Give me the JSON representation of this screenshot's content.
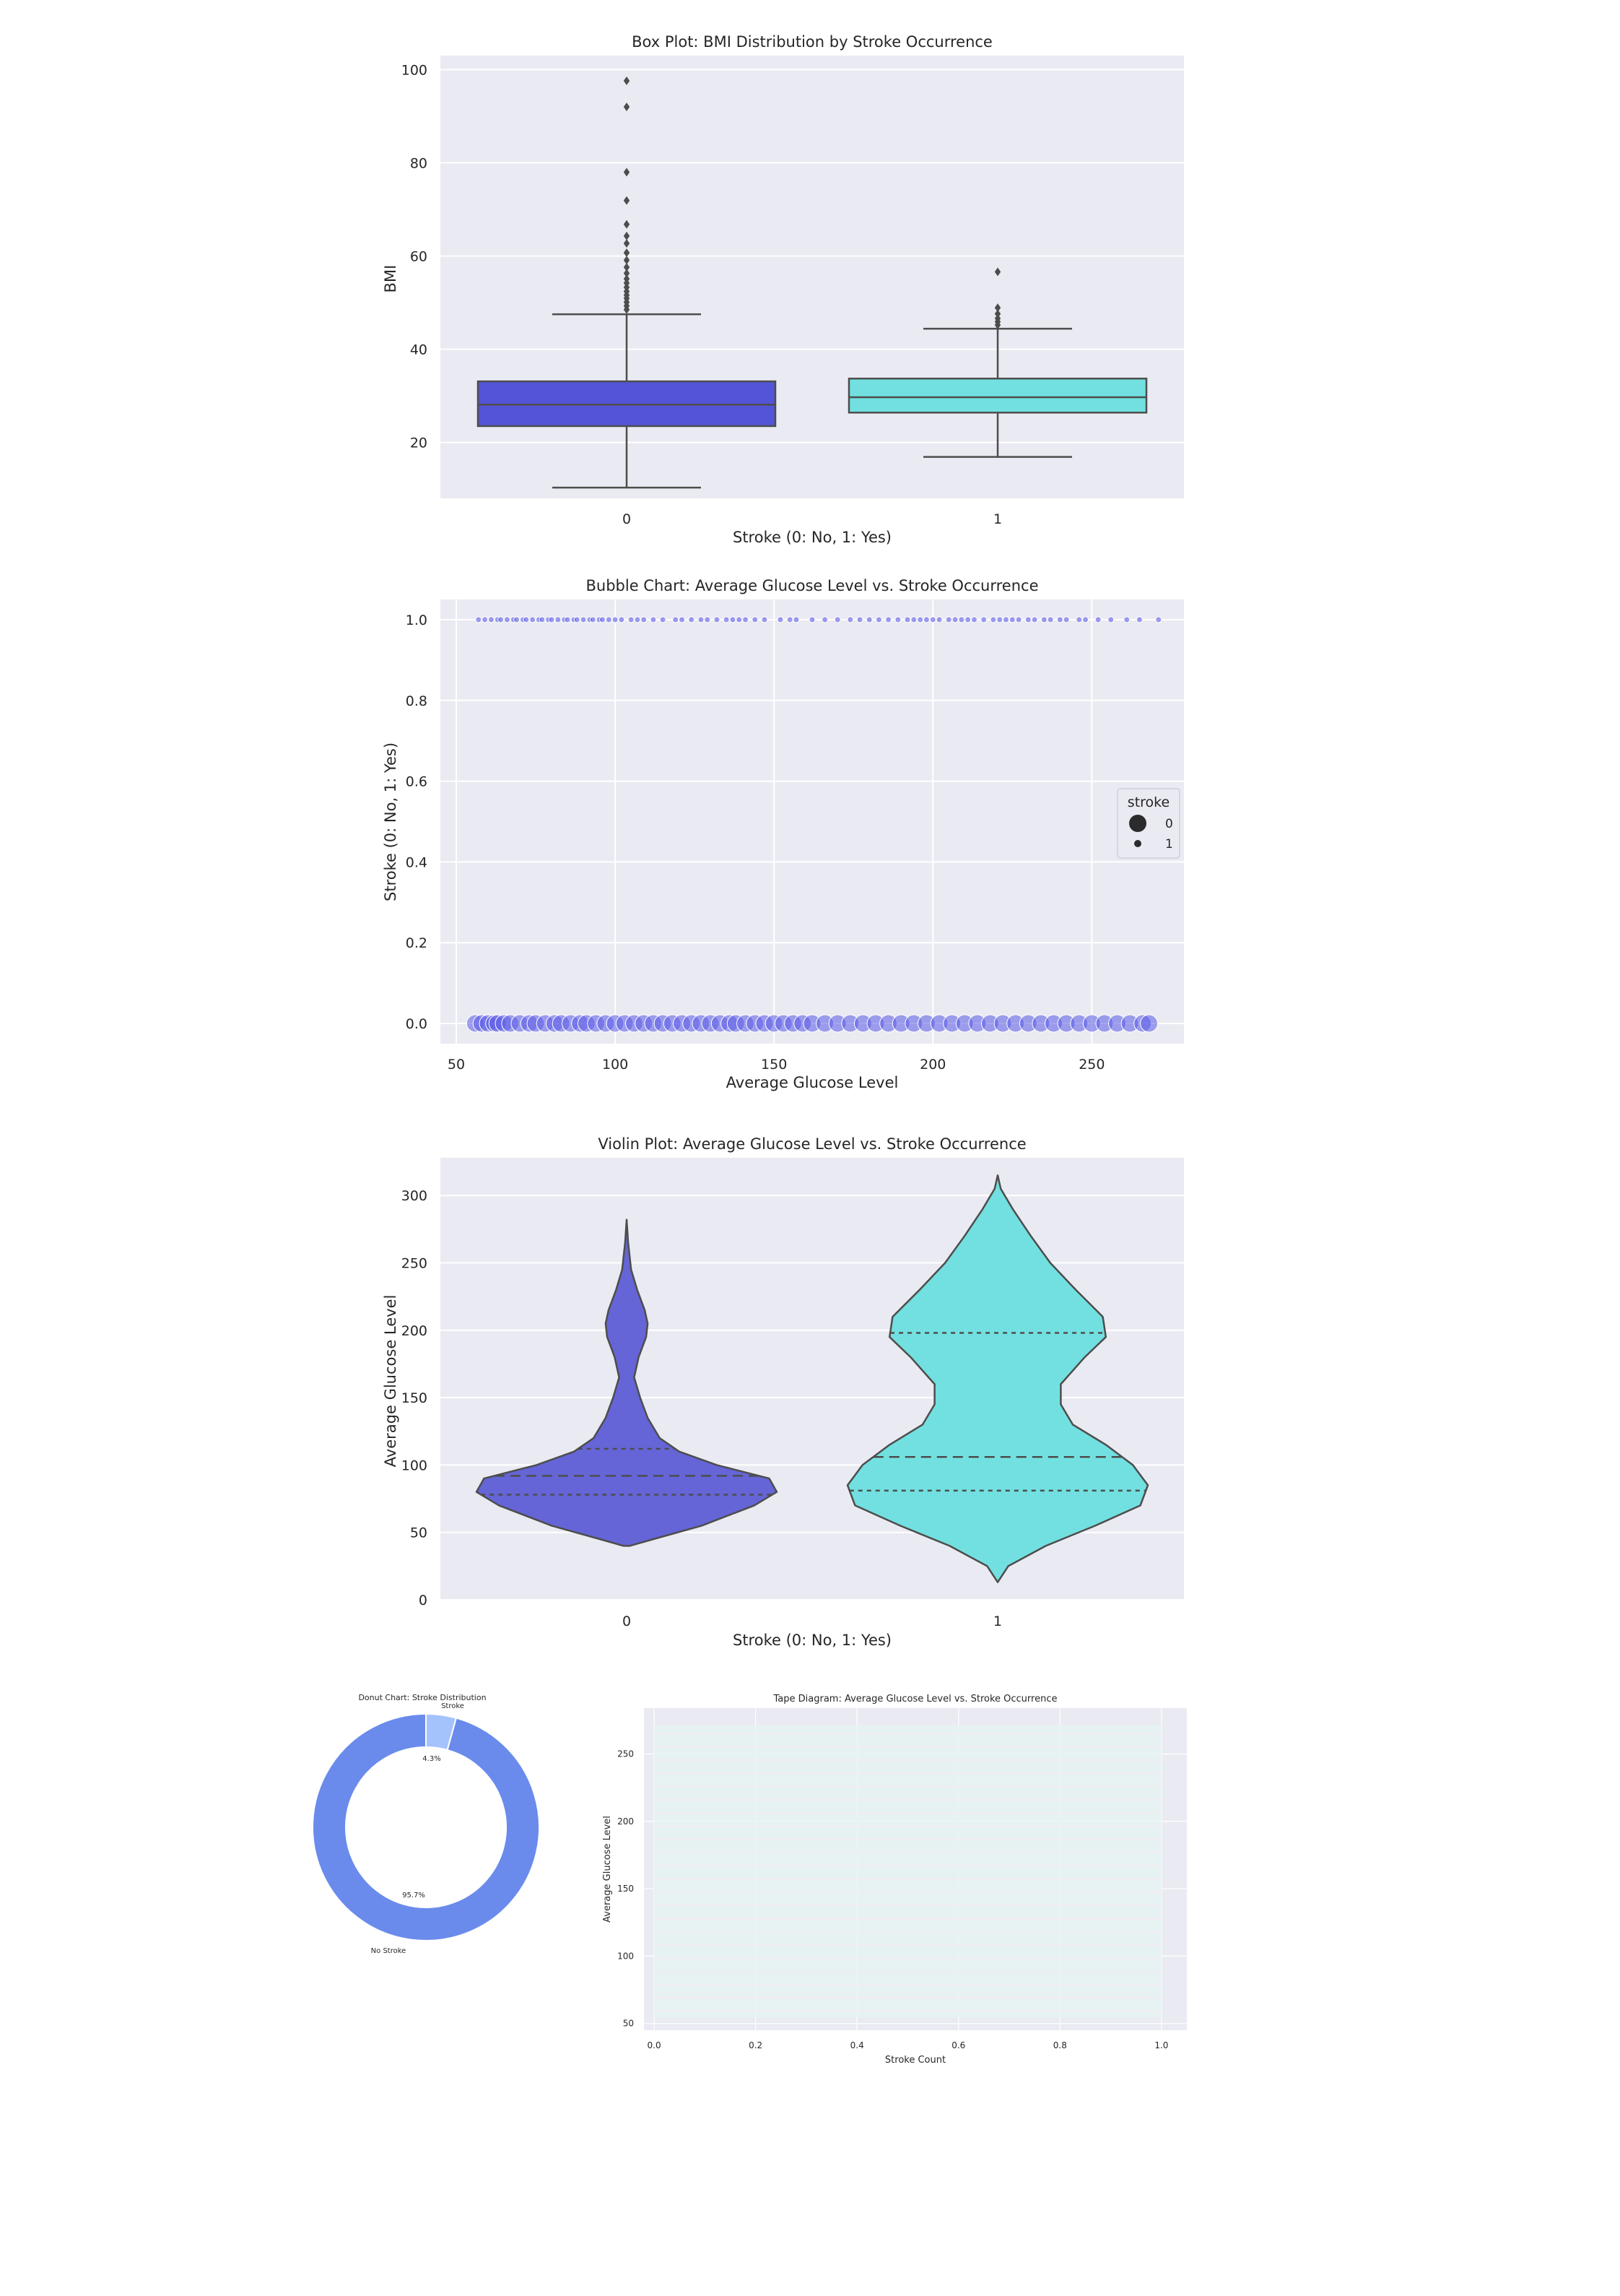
{
  "colors": {
    "panel_bg": "#eaeaf2",
    "grid": "#ffffff",
    "text": "#262626",
    "box0": "#5454d8",
    "box1": "#72e0e0",
    "violin0": "#6565d8",
    "violin1": "#72e0e0",
    "bubble": "#5a5ae6",
    "donut_major": "#6a8bec",
    "donut_minor": "#a4c2fb",
    "line": "#4d4d4d",
    "tape_light": "#e6f3f3",
    "tape_dark": "#f0edf3"
  },
  "chart_data": [
    {
      "type": "box",
      "title": "Box Plot: BMI Distribution by Stroke Occurrence",
      "xlabel": "Stroke (0: No, 1: Yes)",
      "ylabel": "BMI",
      "categories": [
        "0",
        "1"
      ],
      "ylim": [
        8,
        103
      ],
      "yticks": [
        20,
        40,
        60,
        80,
        100
      ],
      "boxes": [
        {
          "category": "0",
          "whisker_low": 10.3,
          "q1": 23.5,
          "median": 28.1,
          "q3": 33.1,
          "whisker_high": 47.5,
          "outliers": [
            48.5,
            49.3,
            50.1,
            50.9,
            51.6,
            52.4,
            53.3,
            54.2,
            55.1,
            56.3,
            57.6,
            59.1,
            60.7,
            62.7,
            64.3,
            66.8,
            71.9,
            78.0,
            92.0,
            97.6
          ]
        },
        {
          "category": "1",
          "whisker_low": 16.9,
          "q1": 26.4,
          "median": 29.7,
          "q3": 33.7,
          "whisker_high": 44.4,
          "outliers": [
            45.2,
            45.9,
            46.6,
            47.6,
            48.9,
            56.6
          ]
        }
      ]
    },
    {
      "type": "scatter",
      "title": "Bubble Chart: Average Glucose Level vs. Stroke Occurrence",
      "xlabel": "Average Glucose Level",
      "ylabel": "Stroke (0: No, 1: Yes)",
      "xlim": [
        45,
        279
      ],
      "ylim": [
        -0.05,
        1.05
      ],
      "xticks": [
        50,
        100,
        150,
        200,
        250
      ],
      "yticks": [
        0.0,
        0.2,
        0.4,
        0.6,
        0.8,
        1.0
      ],
      "legend": {
        "title": "stroke",
        "entries": [
          "0",
          "1"
        ],
        "position": "center-right"
      },
      "series": [
        {
          "name": "0",
          "y": 0,
          "size": "large",
          "x": [
            56,
            58,
            60,
            62,
            63,
            65,
            67,
            70,
            73,
            75,
            78,
            81,
            83,
            86,
            89,
            91,
            94,
            97,
            100,
            103,
            106,
            109,
            112,
            115,
            118,
            121,
            124,
            127,
            130,
            133,
            136,
            138,
            141,
            144,
            147,
            150,
            153,
            156,
            159,
            162,
            166,
            170,
            174,
            178,
            182,
            186,
            190,
            194,
            198,
            202,
            206,
            210,
            214,
            218,
            222,
            226,
            230,
            234,
            238,
            242,
            246,
            250,
            254,
            258,
            262,
            266,
            268
          ]
        },
        {
          "name": "1",
          "y": 1,
          "size": "small",
          "x": [
            57,
            59,
            61,
            63,
            64,
            66,
            68,
            69,
            71,
            72,
            74,
            76,
            77,
            79,
            80,
            82,
            84,
            85,
            87,
            88,
            90,
            92,
            93,
            95,
            96,
            98,
            100,
            102,
            105,
            107,
            109,
            112,
            115,
            119,
            121,
            124,
            127,
            129,
            132,
            135,
            137,
            139,
            141,
            144,
            147,
            152,
            155,
            157,
            162,
            166,
            170,
            174,
            177,
            180,
            183,
            186,
            189,
            192,
            194,
            196,
            198,
            200,
            202,
            205,
            207,
            209,
            211,
            213,
            216,
            219,
            221,
            223,
            225,
            227,
            230,
            232,
            235,
            237,
            240,
            242,
            246,
            248,
            252,
            256,
            261,
            265,
            271
          ]
        }
      ]
    },
    {
      "type": "violin",
      "title": "Violin Plot: Average Glucose Level vs. Stroke Occurrence",
      "xlabel": "Stroke (0: No, 1: Yes)",
      "ylabel": "Average Glucose Level",
      "categories": [
        "0",
        "1"
      ],
      "ylim": [
        0,
        328
      ],
      "yticks": [
        0,
        50,
        100,
        150,
        200,
        250,
        300
      ],
      "violins": [
        {
          "category": "0",
          "q1": 78,
          "median": 92,
          "q3": 112,
          "profile": [
            [
              40,
              0.02
            ],
            [
              45,
              0.18
            ],
            [
              55,
              0.5
            ],
            [
              70,
              0.85
            ],
            [
              80,
              1.0
            ],
            [
              90,
              0.95
            ],
            [
              100,
              0.6
            ],
            [
              110,
              0.35
            ],
            [
              120,
              0.22
            ],
            [
              135,
              0.14
            ],
            [
              150,
              0.09
            ],
            [
              165,
              0.05
            ],
            [
              180,
              0.08
            ],
            [
              195,
              0.13
            ],
            [
              205,
              0.14
            ],
            [
              215,
              0.12
            ],
            [
              230,
              0.07
            ],
            [
              245,
              0.03
            ],
            [
              265,
              0.01
            ],
            [
              282,
              0.0
            ]
          ]
        },
        {
          "category": "1",
          "q1": 81,
          "median": 106,
          "q3": 198,
          "profile": [
            [
              13,
              0.0
            ],
            [
              25,
              0.07
            ],
            [
              40,
              0.32
            ],
            [
              55,
              0.65
            ],
            [
              70,
              0.95
            ],
            [
              85,
              1.0
            ],
            [
              100,
              0.9
            ],
            [
              115,
              0.72
            ],
            [
              130,
              0.5
            ],
            [
              145,
              0.42
            ],
            [
              160,
              0.42
            ],
            [
              180,
              0.58
            ],
            [
              195,
              0.72
            ],
            [
              210,
              0.7
            ],
            [
              230,
              0.52
            ],
            [
              250,
              0.35
            ],
            [
              270,
              0.22
            ],
            [
              290,
              0.1
            ],
            [
              305,
              0.02
            ],
            [
              315,
              0.0
            ]
          ]
        }
      ]
    },
    {
      "type": "pie",
      "title": "Donut Chart: Stroke Distribution",
      "labels": [
        "Stroke",
        "No Stroke"
      ],
      "values": [
        4.3,
        95.7
      ],
      "autopct": [
        "4.3%",
        "95.7%"
      ]
    },
    {
      "type": "bar",
      "orientation": "horizontal",
      "title": "Tape Diagram: Average Glucose Level vs. Stroke Occurrence",
      "xlabel": "Stroke Count",
      "ylabel": "Average Glucose Level",
      "xlim": [
        -0.02,
        1.05
      ],
      "ylim": [
        45,
        284
      ],
      "xticks": [
        0.0,
        0.2,
        0.4,
        0.6,
        0.8,
        1.0
      ],
      "yticks": [
        50,
        100,
        150,
        200,
        250
      ],
      "values_min": 55,
      "values_max": 272,
      "bar_length": 1.0
    }
  ]
}
